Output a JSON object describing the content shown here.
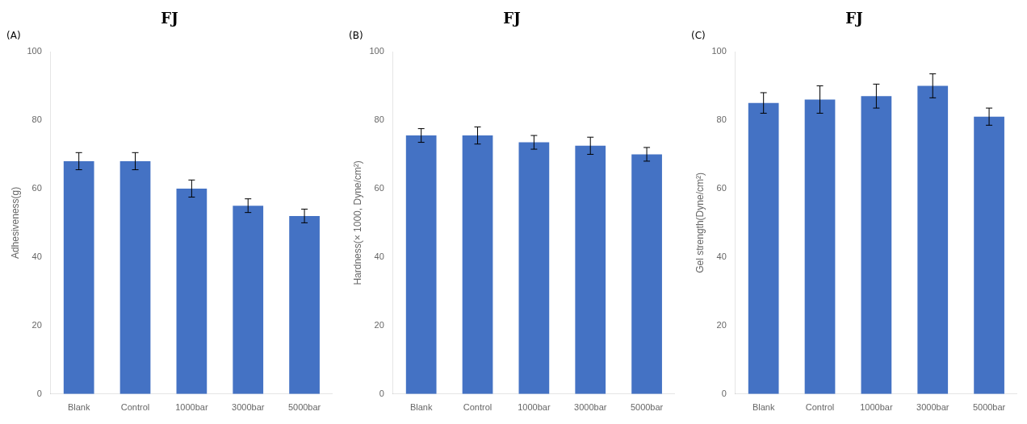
{
  "chart_data": [
    {
      "type": "bar",
      "panel_label": "(A)",
      "title": "FJ",
      "ylabel": "Adhesiveness(g)",
      "categories": [
        "Blank",
        "Control",
        "1000bar",
        "3000bar",
        "5000bar"
      ],
      "values": [
        68,
        68,
        60,
        55,
        52
      ],
      "errors": [
        2.5,
        2.5,
        2.5,
        2.0,
        2.0
      ],
      "color": "#4472C4",
      "ylim": [
        0,
        100
      ],
      "yticks": [
        0,
        20,
        40,
        60,
        80,
        100
      ],
      "grid": false
    },
    {
      "type": "bar",
      "panel_label": "(B)",
      "title": "FJ",
      "ylabel": "Hardness(× 1000, Dyne/cm²)",
      "categories": [
        "Blank",
        "Control",
        "1000bar",
        "3000bar",
        "5000bar"
      ],
      "values": [
        75.5,
        75.5,
        73.5,
        72.5,
        70
      ],
      "errors": [
        2.0,
        2.5,
        2.0,
        2.5,
        2.0
      ],
      "color": "#4472C4",
      "ylim": [
        0,
        100
      ],
      "yticks": [
        0,
        20,
        40,
        60,
        80,
        100
      ],
      "grid": false
    },
    {
      "type": "bar",
      "panel_label": "(C)",
      "title": "FJ",
      "ylabel": "Gel strength(Dyne/cm²)",
      "categories": [
        "Blank",
        "Control",
        "1000bar",
        "3000bar",
        "5000bar"
      ],
      "values": [
        85,
        86,
        87,
        90,
        81
      ],
      "errors": [
        3.0,
        4.0,
        3.5,
        3.5,
        2.5
      ],
      "color": "#4472C4",
      "ylim": [
        0,
        100
      ],
      "yticks": [
        0,
        20,
        40,
        60,
        80,
        100
      ],
      "grid": false
    }
  ]
}
